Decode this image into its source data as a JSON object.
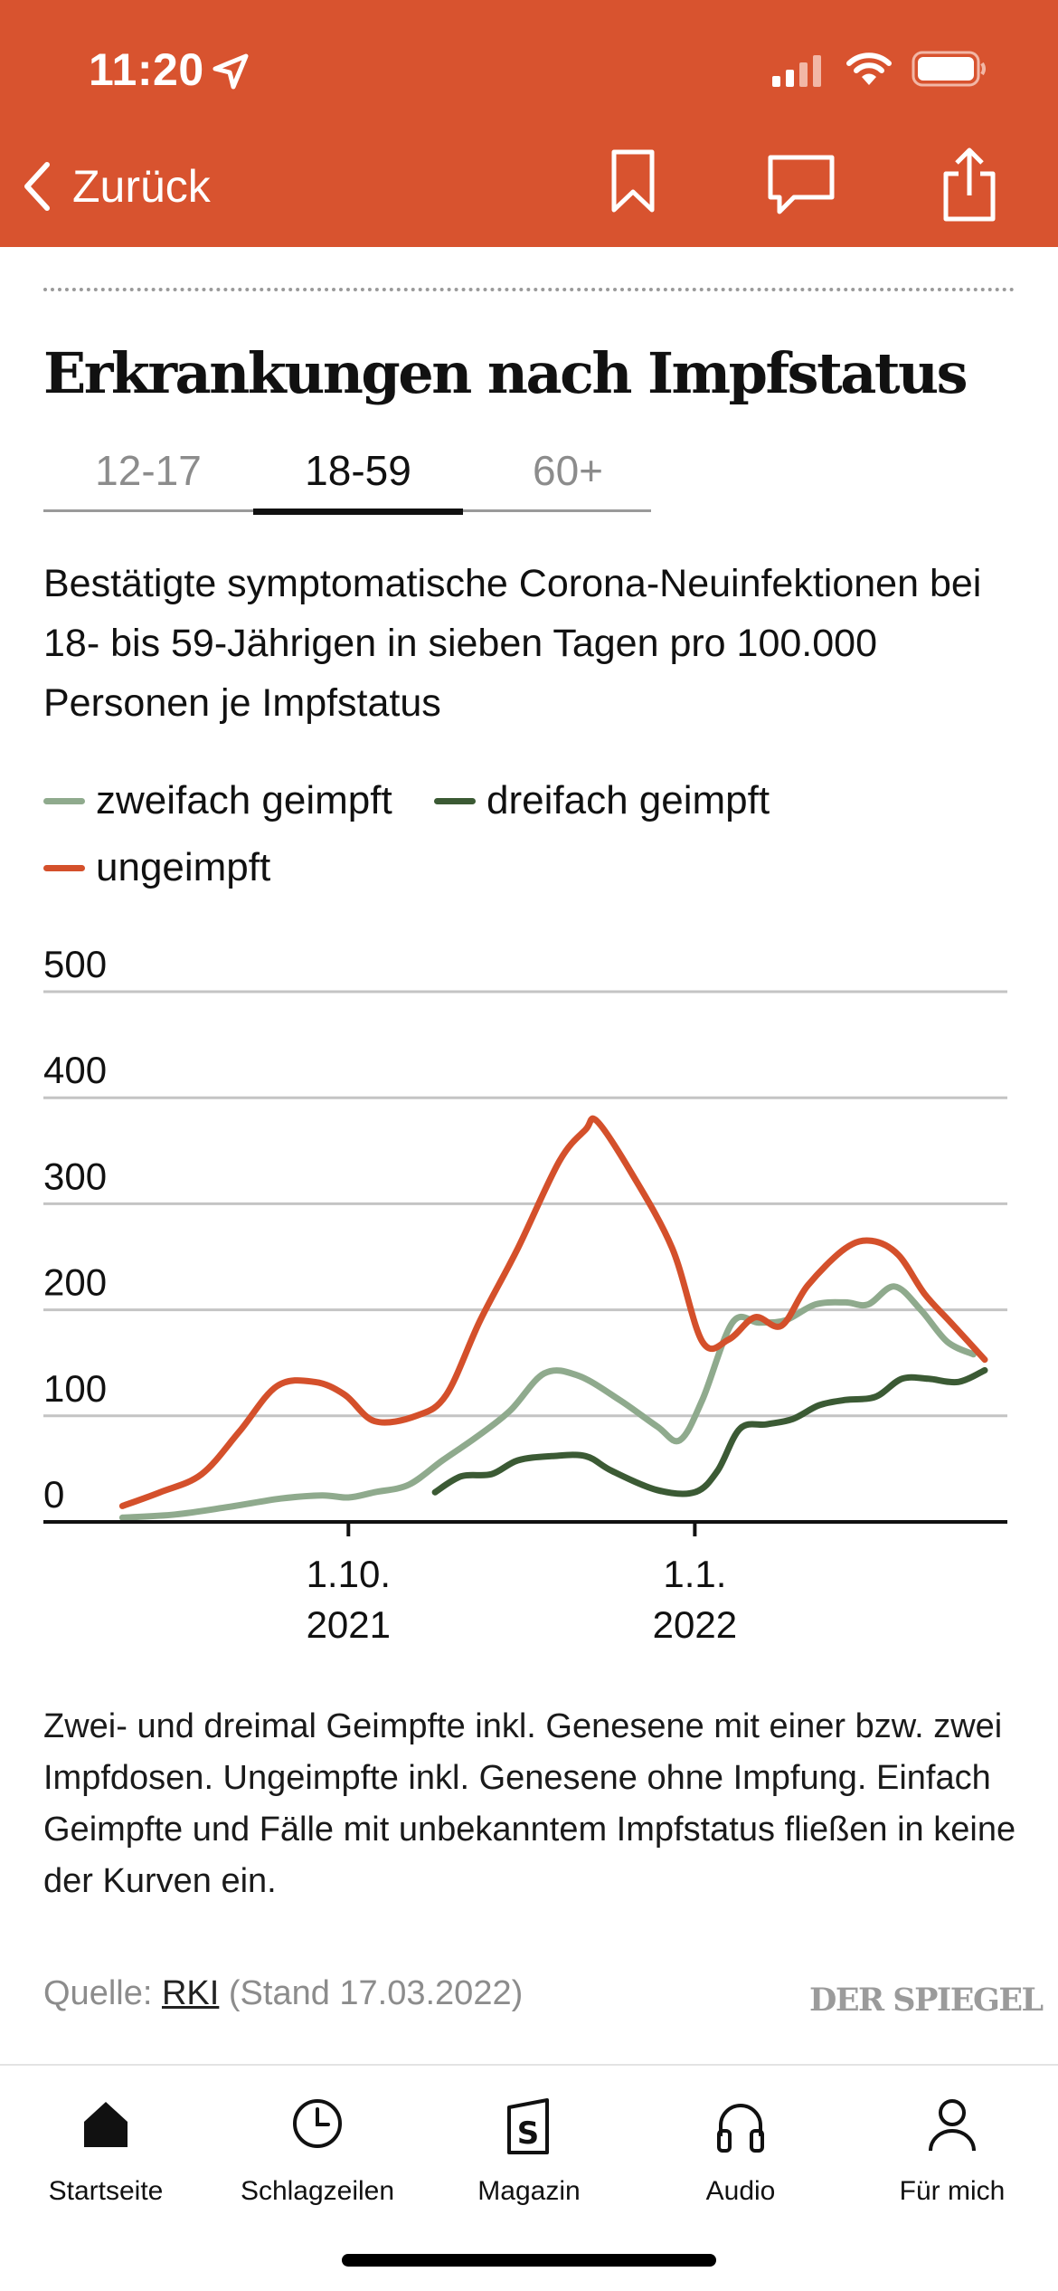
{
  "status_bar": {
    "time": "11:20"
  },
  "nav_bar": {
    "back_label": "Zurück"
  },
  "article": {
    "title": "Erkrankungen nach Impfstatus",
    "tabs": [
      {
        "label": "12-17",
        "active": false
      },
      {
        "label": "18-59",
        "active": true
      },
      {
        "label": "60+",
        "active": false
      }
    ],
    "subtitle": "Bestätigte symptomatische Corona-Neuinfektionen bei 18- bis 59-Jährigen in sieben Tagen pro 100.000 Personen je Impfstatus",
    "note": "Zwei- und dreimal Geimpfte inkl. Genesene mit einer bzw. zwei Impfdosen. Ungeimpfte inkl. Genesene ohne Impfung. Einfach Geimpfte und Fälle mit unbekanntem Impfstatus fließen in keine der Kurven ein.",
    "source_prefix": "Quelle: ",
    "source_link": "RKI",
    "source_suffix": " (Stand 17.03.2022)",
    "brand": "DER SPIEGEL"
  },
  "chart_data": {
    "type": "line",
    "title": "",
    "xlabel": "",
    "ylabel": "",
    "ylim": [
      0,
      500
    ],
    "yticks": [
      0,
      100,
      200,
      300,
      400,
      500
    ],
    "xlim": [
      "2021-07-12",
      "2022-03-25"
    ],
    "xticks": [
      {
        "date": "2021-10-01",
        "label_line1": "1.10.",
        "label_line2": "2021"
      },
      {
        "date": "2022-01-01",
        "label_line1": "1.1.",
        "label_line2": "2022"
      }
    ],
    "grid": true,
    "legend_position": "top",
    "series": [
      {
        "name": "zweifach geimpft",
        "color": "#8faa8d",
        "points": [
          [
            "2021-08-02",
            4
          ],
          [
            "2021-08-16",
            7
          ],
          [
            "2021-08-30",
            14
          ],
          [
            "2021-09-13",
            22
          ],
          [
            "2021-09-24",
            25
          ],
          [
            "2021-10-01",
            23
          ],
          [
            "2021-10-08",
            28
          ],
          [
            "2021-10-17",
            35
          ],
          [
            "2021-10-26",
            58
          ],
          [
            "2021-11-04",
            80
          ],
          [
            "2021-11-13",
            105
          ],
          [
            "2021-11-22",
            140
          ],
          [
            "2021-12-01",
            138
          ],
          [
            "2021-12-12",
            115
          ],
          [
            "2021-12-22",
            90
          ],
          [
            "2021-12-28",
            77
          ],
          [
            "2022-01-03",
            115
          ],
          [
            "2022-01-11",
            188
          ],
          [
            "2022-01-18",
            188
          ],
          [
            "2022-01-25",
            190
          ],
          [
            "2022-02-02",
            205
          ],
          [
            "2022-02-10",
            207
          ],
          [
            "2022-02-16",
            205
          ],
          [
            "2022-02-23",
            222
          ],
          [
            "2022-03-02",
            200
          ],
          [
            "2022-03-09",
            170
          ],
          [
            "2022-03-16",
            158
          ]
        ]
      },
      {
        "name": "dreifach geimpft",
        "color": "#3b5a34",
        "points": [
          [
            "2021-10-24",
            28
          ],
          [
            "2021-10-31",
            43
          ],
          [
            "2021-11-08",
            45
          ],
          [
            "2021-11-15",
            58
          ],
          [
            "2021-11-24",
            62
          ],
          [
            "2021-12-03",
            62
          ],
          [
            "2021-12-10",
            48
          ],
          [
            "2021-12-22",
            30
          ],
          [
            "2022-01-01",
            28
          ],
          [
            "2022-01-07",
            48
          ],
          [
            "2022-01-13",
            88
          ],
          [
            "2022-01-20",
            92
          ],
          [
            "2022-01-27",
            97
          ],
          [
            "2022-02-03",
            110
          ],
          [
            "2022-02-10",
            115
          ],
          [
            "2022-02-18",
            118
          ],
          [
            "2022-02-25",
            135
          ],
          [
            "2022-03-04",
            135
          ],
          [
            "2022-03-12",
            132
          ],
          [
            "2022-03-19",
            143
          ]
        ]
      },
      {
        "name": "ungeimpft",
        "color": "#d4502b",
        "points": [
          [
            "2021-08-02",
            15
          ],
          [
            "2021-08-12",
            28
          ],
          [
            "2021-08-23",
            45
          ],
          [
            "2021-09-02",
            85
          ],
          [
            "2021-09-12",
            128
          ],
          [
            "2021-09-22",
            132
          ],
          [
            "2021-09-30",
            120
          ],
          [
            "2021-10-08",
            95
          ],
          [
            "2021-10-19",
            100
          ],
          [
            "2021-10-27",
            120
          ],
          [
            "2021-11-05",
            190
          ],
          [
            "2021-11-15",
            258
          ],
          [
            "2021-11-26",
            340
          ],
          [
            "2021-12-03",
            370
          ],
          [
            "2021-12-06",
            378
          ],
          [
            "2021-12-15",
            330
          ],
          [
            "2021-12-26",
            258
          ],
          [
            "2022-01-03",
            170
          ],
          [
            "2022-01-10",
            172
          ],
          [
            "2022-01-17",
            193
          ],
          [
            "2022-01-24",
            185
          ],
          [
            "2022-01-31",
            223
          ],
          [
            "2022-02-10",
            258
          ],
          [
            "2022-02-17",
            265
          ],
          [
            "2022-02-24",
            252
          ],
          [
            "2022-03-03",
            215
          ],
          [
            "2022-03-10",
            188
          ],
          [
            "2022-03-19",
            153
          ]
        ]
      }
    ]
  },
  "bottom_nav": {
    "items": [
      {
        "label": "Startseite",
        "icon": "home-icon"
      },
      {
        "label": "Schlagzeilen",
        "icon": "clock-icon"
      },
      {
        "label": "Magazin",
        "icon": "magazine-icon"
      },
      {
        "label": "Audio",
        "icon": "headphones-icon"
      },
      {
        "label": "Für mich",
        "icon": "person-icon"
      }
    ]
  }
}
